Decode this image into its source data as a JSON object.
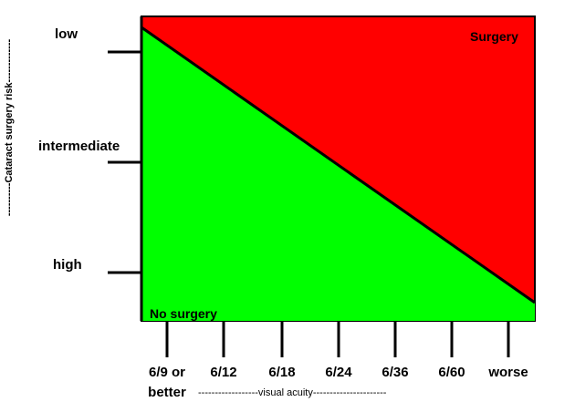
{
  "y_axis": {
    "title": "----------Cataract surgery risk-------------",
    "labels": [
      "low",
      "intermediate",
      "high"
    ]
  },
  "x_axis": {
    "title": "------------------visual acuity----------------------",
    "labels": [
      "6/9 or better",
      "6/12",
      "6/18",
      "6/24",
      "6/36",
      "6/60",
      "worse"
    ]
  },
  "regions": {
    "upper": "Surgery",
    "lower": "No surgery"
  }
}
